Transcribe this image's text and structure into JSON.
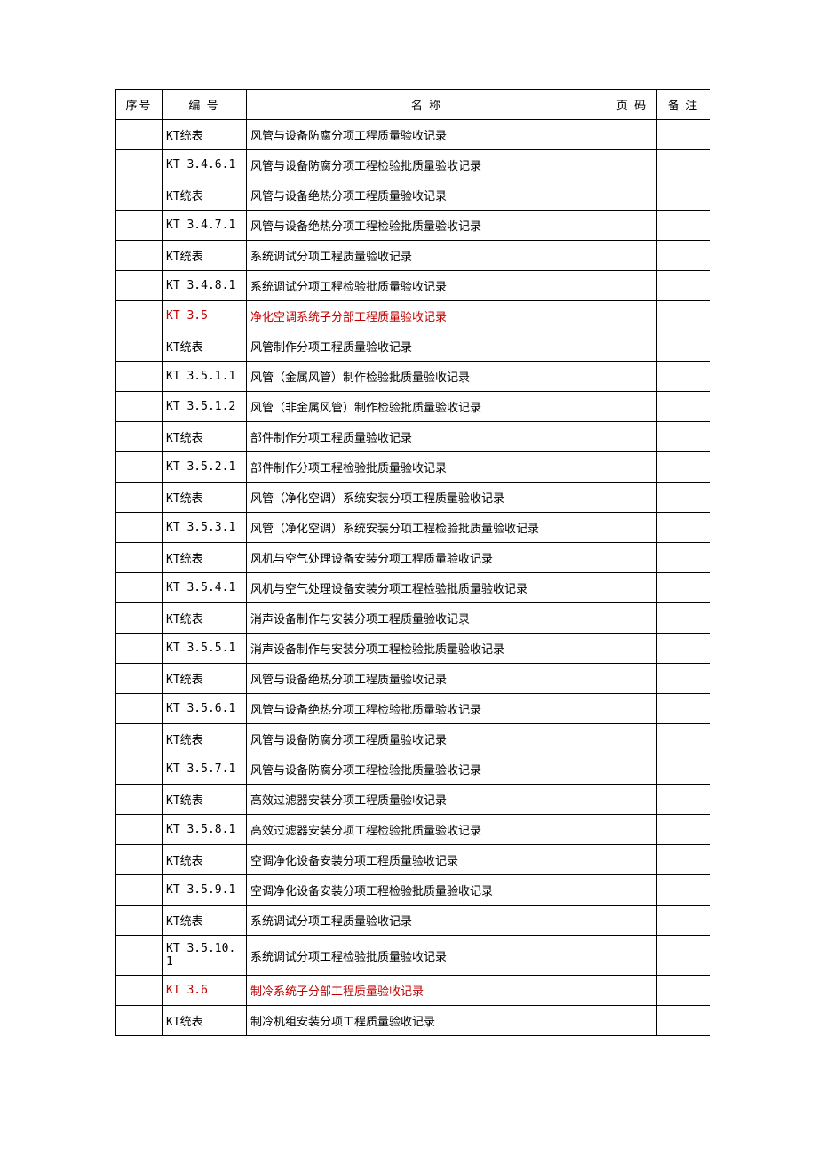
{
  "table": {
    "headers": {
      "seq": "序号",
      "code": "编 号",
      "name": "名   称",
      "page": "页 码",
      "note": "备  注"
    },
    "colors": {
      "normal": "#000000",
      "highlight": "#c00000"
    },
    "rows": [
      {
        "code": "KT统表",
        "name": "风管与设备防腐分项工程质量验收记录",
        "red": false
      },
      {
        "code": "KT 3.4.6.1",
        "name": "风管与设备防腐分项工程检验批质量验收记录",
        "red": false
      },
      {
        "code": "KT统表",
        "name": "风管与设备绝热分项工程质量验收记录",
        "red": false
      },
      {
        "code": "KT 3.4.7.1",
        "name": "风管与设备绝热分项工程检验批质量验收记录",
        "red": false
      },
      {
        "code": "KT统表",
        "name": "系统调试分项工程质量验收记录",
        "red": false
      },
      {
        "code": "KT 3.4.8.1",
        "name": "系统调试分项工程检验批质量验收记录",
        "red": false
      },
      {
        "code": "KT 3.5",
        "name": "净化空调系统子分部工程质量验收记录",
        "red": true
      },
      {
        "code": "KT统表",
        "name": "风管制作分项工程质量验收记录",
        "red": false
      },
      {
        "code": "KT 3.5.1.1",
        "name": "风管（金属风管）制作检验批质量验收记录",
        "red": false
      },
      {
        "code": "KT 3.5.1.2",
        "name": "风管（非金属风管）制作检验批质量验收记录",
        "red": false
      },
      {
        "code": "KT统表",
        "name": "部件制作分项工程质量验收记录",
        "red": false
      },
      {
        "code": "KT 3.5.2.1",
        "name": "部件制作分项工程检验批质量验收记录",
        "red": false
      },
      {
        "code": "KT统表",
        "name": "风管（净化空调）系统安装分项工程质量验收记录",
        "red": false
      },
      {
        "code": "KT 3.5.3.1",
        "name": "风管（净化空调）系统安装分项工程检验批质量验收记录",
        "red": false
      },
      {
        "code": "KT统表",
        "name": "风机与空气处理设备安装分项工程质量验收记录",
        "red": false
      },
      {
        "code": "KT 3.5.4.1",
        "name": "风机与空气处理设备安装分项工程检验批质量验收记录",
        "red": false
      },
      {
        "code": "KT统表",
        "name": "消声设备制作与安装分项工程质量验收记录",
        "red": false
      },
      {
        "code": "KT 3.5.5.1",
        "name": "消声设备制作与安装分项工程检验批质量验收记录",
        "red": false
      },
      {
        "code": "KT统表",
        "name": "风管与设备绝热分项工程质量验收记录",
        "red": false
      },
      {
        "code": "KT 3.5.6.1",
        "name": "风管与设备绝热分项工程检验批质量验收记录",
        "red": false
      },
      {
        "code": "KT统表",
        "name": "风管与设备防腐分项工程质量验收记录",
        "red": false
      },
      {
        "code": "KT 3.5.7.1",
        "name": "风管与设备防腐分项工程检验批质量验收记录",
        "red": false
      },
      {
        "code": "KT统表",
        "name": "高效过滤器安装分项工程质量验收记录",
        "red": false
      },
      {
        "code": "KT 3.5.8.1",
        "name": "高效过滤器安装分项工程检验批质量验收记录",
        "red": false
      },
      {
        "code": "KT统表",
        "name": "空调净化设备安装分项工程质量验收记录",
        "red": false
      },
      {
        "code": "KT 3.5.9.1",
        "name": "空调净化设备安装分项工程检验批质量验收记录",
        "red": false
      },
      {
        "code": "KT统表",
        "name": "系统调试分项工程质量验收记录",
        "red": false
      },
      {
        "code": "KT 3.5.10.1",
        "name": "系统调试分项工程检验批质量验收记录",
        "red": false
      },
      {
        "code": "KT 3.6",
        "name": "制冷系统子分部工程质量验收记录",
        "red": true
      },
      {
        "code": "KT统表",
        "name": "制冷机组安装分项工程质量验收记录",
        "red": false
      }
    ]
  }
}
